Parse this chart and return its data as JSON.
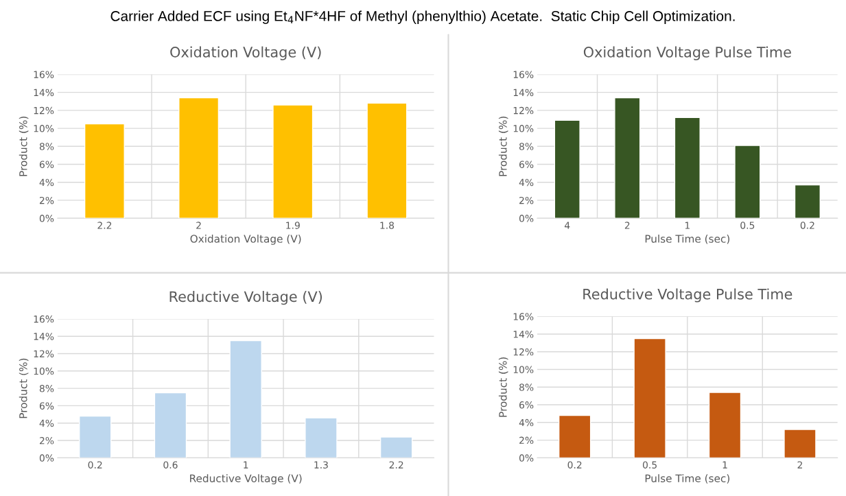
{
  "chart_data": [
    {
      "type": "bar",
      "title": "Oxidation Voltage (V)",
      "xlabel": "Oxidation Voltage (V)",
      "ylabel": "Product (%)",
      "categories": [
        "2.2",
        "2",
        "1.9",
        "1.8"
      ],
      "values": [
        10.5,
        13.4,
        12.6,
        12.8
      ],
      "color": "#ffc000",
      "ylim": [
        0,
        16
      ],
      "yticks": [
        {
          "value": 0,
          "label": "0%"
        },
        {
          "value": 2,
          "label": "2%"
        },
        {
          "value": 4,
          "label": "4%"
        },
        {
          "value": 6,
          "label": "6%"
        },
        {
          "value": 8,
          "label": "8%"
        },
        {
          "value": 10,
          "label": "10%"
        },
        {
          "value": 12,
          "label": "12%"
        },
        {
          "value": 14,
          "label": "14%"
        },
        {
          "value": 16,
          "label": "16%"
        }
      ],
      "grid": true,
      "annotations": [
        "Carrier Added ECF using Et$_{4}$NF*4HF of Methyl (phenylthio) Acetate.  Static Chip Cell Optimization."
      ]
    },
    {
      "type": "bar",
      "title": "Oxidation Voltage Pulse Time",
      "xlabel": "Pulse Time (sec)",
      "ylabel": "Product (%)",
      "categories": [
        "4",
        "2",
        "1",
        "0.5",
        "0.2"
      ],
      "values": [
        10.9,
        13.4,
        11.2,
        8.1,
        3.7
      ],
      "color": "#375623",
      "ylim": [
        0,
        16
      ],
      "yticks": [
        {
          "value": 0,
          "label": "0%"
        },
        {
          "value": 2,
          "label": "2%"
        },
        {
          "value": 4,
          "label": "4%"
        },
        {
          "value": 6,
          "label": "6%"
        },
        {
          "value": 8,
          "label": "8%"
        },
        {
          "value": 10,
          "label": "10%"
        },
        {
          "value": 12,
          "label": "12%"
        },
        {
          "value": 14,
          "label": "14%"
        },
        {
          "value": 16,
          "label": "16%"
        }
      ],
      "grid": true
    },
    {
      "type": "bar",
      "title": "Reductive Voltage (V)",
      "xlabel": "Reductive Voltage (V)",
      "ylabel": "Product (%)",
      "categories": [
        "0.2",
        "0.6",
        "1",
        "1.3",
        "2.2"
      ],
      "values": [
        4.8,
        7.5,
        13.5,
        4.6,
        2.4
      ],
      "color": "#bdd7ee",
      "ylim": [
        0,
        16
      ],
      "yticks": [
        {
          "value": 0,
          "label": "0%"
        },
        {
          "value": 2,
          "label": "2%"
        },
        {
          "value": 4,
          "label": "4%"
        },
        {
          "value": 6,
          "label": "6%"
        },
        {
          "value": 8,
          "label": "8%"
        },
        {
          "value": 10,
          "label": "10%"
        },
        {
          "value": 12,
          "label": "12%"
        },
        {
          "value": 14,
          "label": "14%"
        },
        {
          "value": 16,
          "label": "16%"
        }
      ],
      "grid": true
    },
    {
      "type": "bar",
      "title": "Reductive Voltage Pulse Time",
      "xlabel": "Pulse Time (sec)",
      "ylabel": "Product (%)",
      "categories": [
        "0.2",
        "0.5",
        "1",
        "2"
      ],
      "values": [
        4.8,
        13.5,
        7.4,
        3.2
      ],
      "color": "#c55a11",
      "ylim": [
        0,
        16
      ],
      "yticks": [
        {
          "value": 0,
          "label": "0%"
        },
        {
          "value": 2,
          "label": "2%"
        },
        {
          "value": 4,
          "label": "4%"
        },
        {
          "value": 6,
          "label": "6%"
        },
        {
          "value": 8,
          "label": "8%"
        },
        {
          "value": 10,
          "label": "10%"
        },
        {
          "value": 12,
          "label": "12%"
        },
        {
          "value": 14,
          "label": "14%"
        },
        {
          "value": 16,
          "label": "16%"
        }
      ],
      "grid": true
    }
  ]
}
